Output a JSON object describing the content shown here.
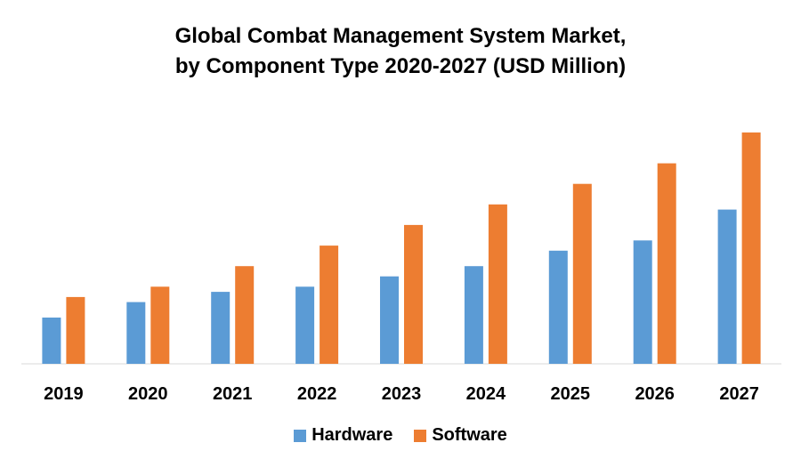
{
  "chart_data": {
    "type": "bar",
    "title_line1": "Global Combat Management System Market,",
    "title_line2": "by Component Type 2020-2027 (USD Million)",
    "categories": [
      "2019",
      "2020",
      "2021",
      "2022",
      "2023",
      "2024",
      "2025",
      "2026",
      "2027"
    ],
    "series": [
      {
        "name": "Hardware",
        "color": "#5B9BD5",
        "values": [
          18,
          24,
          28,
          30,
          34,
          38,
          44,
          48,
          60
        ]
      },
      {
        "name": "Software",
        "color": "#ED7D31",
        "values": [
          26,
          30,
          38,
          46,
          54,
          62,
          70,
          78,
          90
        ]
      }
    ],
    "ylim": [
      0,
      100
    ],
    "grid": false,
    "legend": "bottom"
  }
}
